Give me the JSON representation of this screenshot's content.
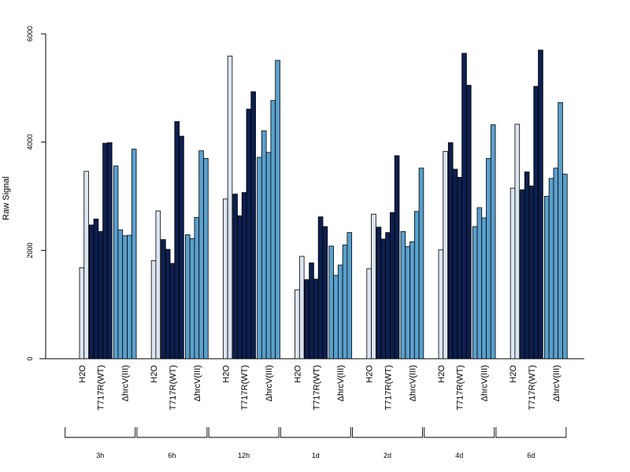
{
  "chart_data": {
    "type": "bar",
    "ylabel": "Raw Signal",
    "ylim": [
      0,
      6000
    ],
    "yticks": [
      0,
      2000,
      4000,
      6000
    ],
    "groups": [
      "3h",
      "6h",
      "12h",
      "1d",
      "2d",
      "4d",
      "6d"
    ],
    "conditions": [
      "H2O",
      "T717R(WT)",
      "ΔhrcV(III)"
    ],
    "colors": {
      "H2O": "#dbe5f1",
      "T717R(WT)": "#0c1f4f",
      "ΔhrcV(III)": "#5aa0cd"
    },
    "series": [
      {
        "name": "H2O",
        "values": [
          [
            0,
            1680,
            3460
          ],
          [
            0,
            1810,
            2730
          ],
          [
            0,
            2950,
            5590
          ],
          [
            0,
            1270,
            1890
          ],
          [
            0,
            1660,
            2670
          ],
          [
            0,
            2010,
            3830
          ],
          [
            0,
            3150,
            4330
          ]
        ]
      },
      {
        "name": "T717R(WT)",
        "values": [
          [
            2470,
            2580,
            2350,
            3980,
            3990
          ],
          [
            2200,
            2020,
            1760,
            4380,
            4110
          ],
          [
            3040,
            2640,
            3070,
            4610,
            4930
          ],
          [
            1460,
            1770,
            1470,
            2620,
            2440
          ],
          [
            2430,
            2210,
            2330,
            2700,
            3750
          ],
          [
            3990,
            3500,
            3350,
            5640,
            5050
          ],
          [
            3120,
            3450,
            3190,
            5030,
            5700
          ]
        ]
      },
      {
        "name": "ΔhrcV(III)",
        "values": [
          [
            3560,
            2380,
            2270,
            2280,
            3870
          ],
          [
            2290,
            2220,
            2610,
            3840,
            3700
          ],
          [
            3720,
            4210,
            3810,
            4770,
            5510
          ],
          [
            2080,
            1540,
            1730,
            2100,
            2330
          ],
          [
            2350,
            2070,
            2160,
            2720,
            3520
          ],
          [
            2440,
            2790,
            2600,
            3700,
            4320
          ],
          [
            3000,
            3330,
            3520,
            4730,
            3410
          ]
        ]
      }
    ]
  }
}
